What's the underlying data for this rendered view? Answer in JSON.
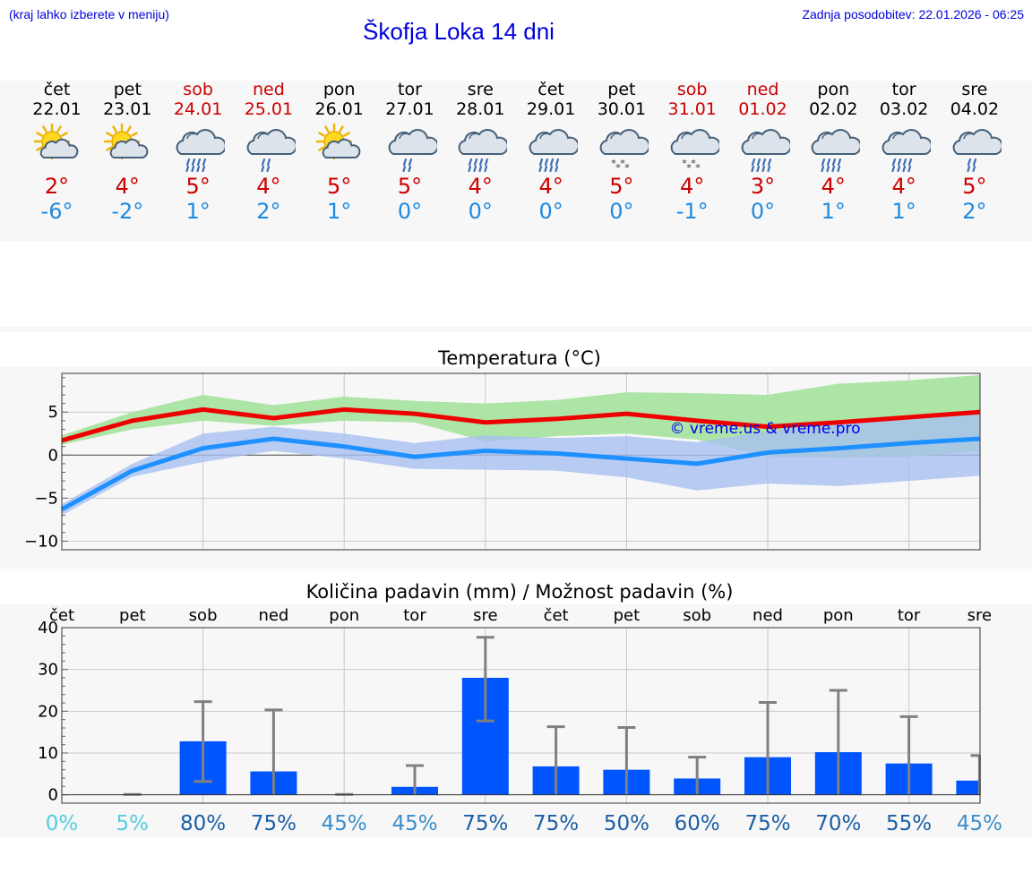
{
  "header": {
    "hint": "(kraj lahko izberete v meniju)",
    "title": "Škofja Loka 14 dni",
    "updated": "Zadnja posodobitev: 22.01.2026 - 06:25"
  },
  "days": [
    {
      "name": "čet",
      "date": "22.01",
      "weekend": false,
      "icon": "sun-cloud",
      "max": "2°",
      "min": "-6°"
    },
    {
      "name": "pet",
      "date": "23.01",
      "weekend": false,
      "icon": "sun-cloud",
      "max": "4°",
      "min": "-2°"
    },
    {
      "name": "sob",
      "date": "24.01",
      "weekend": true,
      "icon": "rain-cloud",
      "max": "5°",
      "min": "1°"
    },
    {
      "name": "ned",
      "date": "25.01",
      "weekend": true,
      "icon": "light-rain-cloud",
      "max": "4°",
      "min": "2°"
    },
    {
      "name": "pon",
      "date": "26.01",
      "weekend": false,
      "icon": "sun-cloud",
      "max": "5°",
      "min": "1°"
    },
    {
      "name": "tor",
      "date": "27.01",
      "weekend": false,
      "icon": "light-rain-cloud",
      "max": "5°",
      "min": "0°"
    },
    {
      "name": "sre",
      "date": "28.01",
      "weekend": false,
      "icon": "rain-cloud",
      "max": "4°",
      "min": "0°"
    },
    {
      "name": "čet",
      "date": "29.01",
      "weekend": false,
      "icon": "rain-cloud",
      "max": "4°",
      "min": "0°"
    },
    {
      "name": "pet",
      "date": "30.01",
      "weekend": false,
      "icon": "snow-cloud",
      "max": "5°",
      "min": "0°"
    },
    {
      "name": "sob",
      "date": "31.01",
      "weekend": true,
      "icon": "snow-cloud",
      "max": "4°",
      "min": "-1°"
    },
    {
      "name": "ned",
      "date": "01.02",
      "weekend": true,
      "icon": "rain-cloud",
      "max": "3°",
      "min": "0°"
    },
    {
      "name": "pon",
      "date": "02.02",
      "weekend": false,
      "icon": "rain-cloud",
      "max": "4°",
      "min": "1°"
    },
    {
      "name": "tor",
      "date": "03.02",
      "weekend": false,
      "icon": "rain-cloud",
      "max": "4°",
      "min": "1°"
    },
    {
      "name": "sre",
      "date": "04.02",
      "weekend": false,
      "icon": "light-rain-cloud",
      "max": "5°",
      "min": "2°"
    }
  ],
  "colors": {
    "max_line": "#ee0000",
    "max_band": "#a8e4a0",
    "min_line": "#1e90ff",
    "min_band": "#a8bff0",
    "bar": "#0055ff",
    "error": "#808080",
    "watermark": "#0000ee"
  },
  "chart_data": [
    {
      "type": "line",
      "title": "Temperatura (°C)",
      "watermark": "© vreme.us & vreme.pro",
      "x": [
        0,
        1,
        2,
        3,
        4,
        5,
        6,
        7,
        8,
        9,
        10,
        11,
        12,
        13
      ],
      "ylim": [
        -11,
        9.5
      ],
      "yticks": [
        5,
        0,
        -5,
        -10
      ],
      "ytick_labels": [
        "5",
        "0",
        "−5",
        "−10"
      ],
      "series": [
        {
          "name": "max",
          "values": [
            1.7,
            4.0,
            5.3,
            4.3,
            5.3,
            4.8,
            3.8,
            4.2,
            4.8,
            4.0,
            3.3,
            3.8,
            4.4,
            5.0
          ],
          "band_low": [
            1.2,
            3.0,
            4.0,
            3.4,
            4.0,
            3.8,
            1.6,
            2.2,
            2.5,
            1.8,
            -0.2,
            -0.3,
            -0.2,
            0.5
          ],
          "band_high": [
            2.3,
            5.0,
            7.0,
            5.8,
            6.8,
            6.3,
            6.0,
            6.4,
            7.3,
            7.2,
            7.0,
            8.3,
            8.7,
            9.3
          ]
        },
        {
          "name": "min",
          "values": [
            -6.3,
            -1.8,
            0.8,
            1.9,
            1.0,
            -0.2,
            0.5,
            0.2,
            -0.4,
            -1.0,
            0.3,
            0.8,
            1.4,
            1.9
          ],
          "band_low": [
            -7.0,
            -2.5,
            -0.8,
            0.5,
            -0.4,
            -1.6,
            -1.7,
            -1.8,
            -2.6,
            -4.1,
            -3.3,
            -3.6,
            -3.0,
            -2.4
          ],
          "band_high": [
            -5.7,
            -1.0,
            2.5,
            3.3,
            2.5,
            1.4,
            2.3,
            2.0,
            2.2,
            1.5,
            2.8,
            3.7,
            4.4,
            5.3
          ]
        }
      ]
    },
    {
      "type": "bar",
      "title": "Količina padavin (mm) / Možnost padavin (%)",
      "categories": [
        "čet",
        "pet",
        "sob",
        "ned",
        "pon",
        "tor",
        "sre",
        "čet",
        "pet",
        "sob",
        "ned",
        "pon",
        "tor",
        "sre"
      ],
      "values": [
        0,
        0,
        12.8,
        5.6,
        0,
        1.9,
        28.0,
        6.8,
        6.0,
        3.9,
        9.0,
        10.2,
        7.5,
        3.4
      ],
      "err_low": [
        0,
        0,
        3.2,
        0,
        0,
        0,
        17.7,
        0,
        0,
        0,
        0,
        0,
        0,
        0
      ],
      "err_high": [
        0,
        0.1,
        22.3,
        20.3,
        0.1,
        7.0,
        37.7,
        16.3,
        16.1,
        9.0,
        22.1,
        25.0,
        18.7,
        9.4
      ],
      "probability": [
        "0%",
        "5%",
        "80%",
        "75%",
        "45%",
        "45%",
        "75%",
        "75%",
        "50%",
        "60%",
        "75%",
        "70%",
        "55%",
        "45%"
      ],
      "probability_colors": [
        "#55cce0",
        "#55cce0",
        "#1a5fa6",
        "#1a5fa6",
        "#3b8fcc",
        "#3b8fcc",
        "#1a5fa6",
        "#1a5fa6",
        "#1a5fa6",
        "#1a5fa6",
        "#1a5fa6",
        "#1a5fa6",
        "#1a5fa6",
        "#3b8fcc"
      ],
      "ylim": [
        -2,
        40
      ],
      "yticks": [
        40,
        30,
        20,
        10,
        0
      ],
      "ytick_labels": [
        "40",
        "30",
        "20",
        "10",
        "0"
      ]
    }
  ]
}
